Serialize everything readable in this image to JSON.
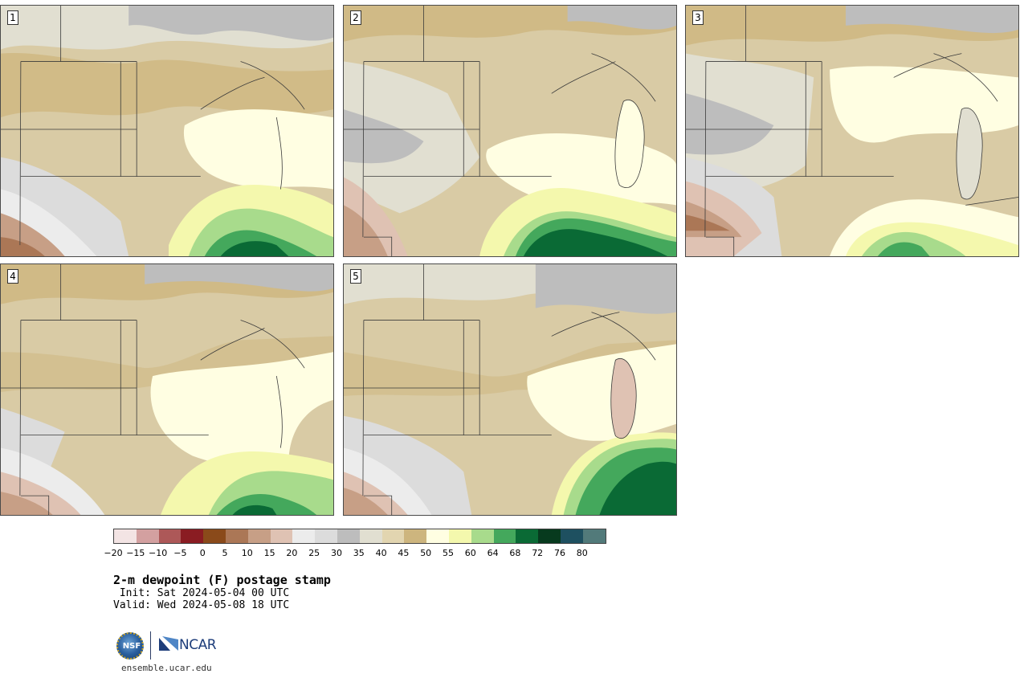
{
  "panels": [
    {
      "id": "p1",
      "label": "1"
    },
    {
      "id": "p2",
      "label": "2"
    },
    {
      "id": "p3",
      "label": "3"
    },
    {
      "id": "p4",
      "label": "4"
    },
    {
      "id": "p5",
      "label": "5"
    }
  ],
  "colorbar": {
    "colors": [
      "#f3e4e4",
      "#d3a0a0",
      "#ad5858",
      "#8a1c22",
      "#8a4a1a",
      "#ab7756",
      "#c79f86",
      "#dfc2b3",
      "#ececec",
      "#dcdcdc",
      "#bdbdbd",
      "#e1dfd1",
      "#e2d5b0",
      "#cdb57e",
      "#fffee2",
      "#f4f8ad",
      "#a8db8c",
      "#44a85c",
      "#0a6a35",
      "#073a1e",
      "#1e5060",
      "#527a7a"
    ],
    "ticks": [
      "−20",
      "−15",
      "−10",
      "−5",
      "0",
      "5",
      "10",
      "15",
      "20",
      "25",
      "30",
      "35",
      "40",
      "45",
      "50",
      "55",
      "60",
      "64",
      "68",
      "72",
      "76",
      "80"
    ]
  },
  "title": "2-m dewpoint (F) postage stamp",
  "init": " Init: Sat 2024-05-04 00 UTC",
  "valid": "Valid: Wed 2024-05-08 18 UTC",
  "logos": {
    "nsf": "NSF",
    "ncar": "NCAR"
  },
  "website": "ensemble.ucar.edu"
}
